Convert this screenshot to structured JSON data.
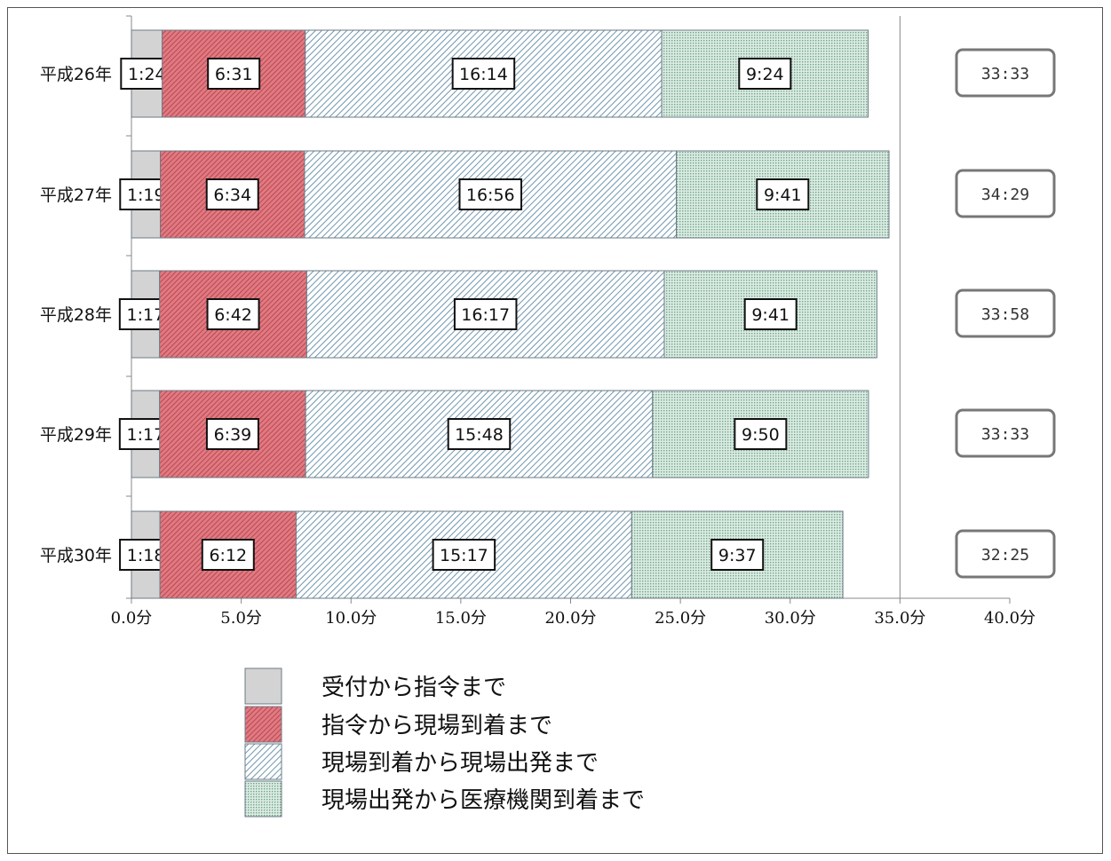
{
  "chart_data": {
    "type": "bar",
    "orientation": "horizontal",
    "stacked": true,
    "categories": [
      "平成26年",
      "平成27年",
      "平成28年",
      "平成29年",
      "平成30年"
    ],
    "series": [
      {
        "name": "受付から指令まで",
        "values": [
          1.4,
          1.317,
          1.283,
          1.283,
          1.3
        ],
        "labels": [
          "1:24",
          "1:19",
          "1:17",
          "1:17",
          "1:18"
        ],
        "color": "#d3d3d3",
        "pattern": "solid"
      },
      {
        "name": "指令から現場到着まで",
        "values": [
          6.517,
          6.567,
          6.7,
          6.65,
          6.2
        ],
        "labels": [
          "6:31",
          "6:34",
          "6:42",
          "6:39",
          "6:12"
        ],
        "color": "#d9666f",
        "pattern": "fine-hatch"
      },
      {
        "name": "現場到着から現場出発まで",
        "values": [
          16.233,
          16.933,
          16.283,
          15.8,
          15.283
        ],
        "labels": [
          "16:14",
          "16:56",
          "16:17",
          "15:48",
          "15:17"
        ],
        "color": "#b7cedb",
        "pattern": "diagonal-hatch"
      },
      {
        "name": "現場出発から医療機関到着まで",
        "values": [
          9.4,
          9.683,
          9.683,
          9.833,
          9.617
        ],
        "labels": [
          "9:24",
          "9:41",
          "9:41",
          "9:50",
          "9:37"
        ],
        "color": "#c5e0d3",
        "pattern": "dots"
      }
    ],
    "totals": [
      "33:33",
      "34:29",
      "33:58",
      "33:33",
      "32:25"
    ],
    "xlim": [
      0,
      40
    ],
    "xticks": [
      {
        "value": 0,
        "label": "0.0分"
      },
      {
        "value": 5,
        "label": "5.0分"
      },
      {
        "value": 10,
        "label": "10.0分"
      },
      {
        "value": 15,
        "label": "15.0分"
      },
      {
        "value": 20,
        "label": "20.0分"
      },
      {
        "value": 25,
        "label": "25.0分"
      },
      {
        "value": 30,
        "label": "30.0分"
      },
      {
        "value": 35,
        "label": "35.0分"
      },
      {
        "value": 40,
        "label": "40.0分"
      }
    ],
    "gridlines": [
      35
    ],
    "legend_position": "bottom",
    "title": "",
    "xlabel": "",
    "ylabel": ""
  }
}
